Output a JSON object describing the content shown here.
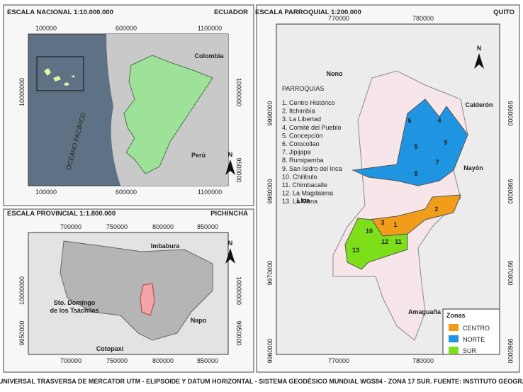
{
  "national": {
    "title": "ESCALA NACIONAL 1:10.000.000",
    "region": "ECUADOR",
    "xticks_top": [
      "100000",
      "600000",
      "1100000"
    ],
    "xticks_bottom": [
      "100000",
      "600000",
      "1100000"
    ],
    "yticks_left": [
      "10000000"
    ],
    "yticks_right": [
      "10000000",
      "9500000"
    ],
    "labels": [
      "Colombia",
      "Perú",
      "OCÉANO PACÍFICO"
    ],
    "north": "N"
  },
  "provincial": {
    "title": "ESCALA PROVINCIAL 1:1.800.000",
    "region": "PICHINCHA",
    "xticks_top": [
      "700000",
      "750000",
      "800000",
      "850000"
    ],
    "xticks_bottom": [
      "700000",
      "750000",
      "800000",
      "850000"
    ],
    "yticks_left": [
      "10000000",
      "9950000"
    ],
    "yticks_right": [
      "10000000",
      "9950000"
    ],
    "labels": [
      "Imbabura",
      "Sto. Domingo",
      "de los Tsáchilas",
      "Napo",
      "Cotopaxi"
    ],
    "north": "N"
  },
  "parish": {
    "title": "ESCALA PARROQUIAL 1:200.000",
    "region": "QUITO",
    "xticks_top": [
      "770000",
      "780000"
    ],
    "xticks_bottom": [
      "770000",
      "780000"
    ],
    "yticks_left": [
      "9990000",
      "9980000",
      "9970000",
      "9960000"
    ],
    "yticks_right": [
      "9990000",
      "9980000",
      "9970000",
      "9960000"
    ],
    "labels": [
      "Nono",
      "Calderón",
      "Nayón",
      "Lloa",
      "Amaguaña"
    ],
    "north": "N",
    "list_title": "PARROQUIAS",
    "list": [
      "1.  Centro Histórico",
      "2.  Itchimbía",
      "3.  La Libertad",
      "4.  Comité del Pueblo",
      "5.  Concepción",
      "6.  Cotocollao",
      "7.  Jipijapa",
      "8.  Rumipamba",
      "9.  San Isidro del Inca",
      "10. Chilibulo",
      "11. Chimbacalle",
      "12. La Magdalena",
      "13. La Mena"
    ],
    "numbers": [
      "1",
      "2",
      "3",
      "4",
      "5",
      "6",
      "7",
      "8",
      "9",
      "10",
      "11",
      "12",
      "13"
    ],
    "legend": {
      "title": "Zonas",
      "items": [
        "CENTRO",
        "NORTE",
        "SUR"
      ]
    }
  },
  "footer": "PROYECCIÓN UNIVERSAL TRASVERSA DE MERCATOR UTM - ELIPSOIDE Y DATUM HORIZONTAL - SISTEMA GEODÉSICO MUNDIAL WGS84 - ZONA 17 SUR. FUENTE: INSTITUTO GEOGRÁFICO MILITAR"
}
